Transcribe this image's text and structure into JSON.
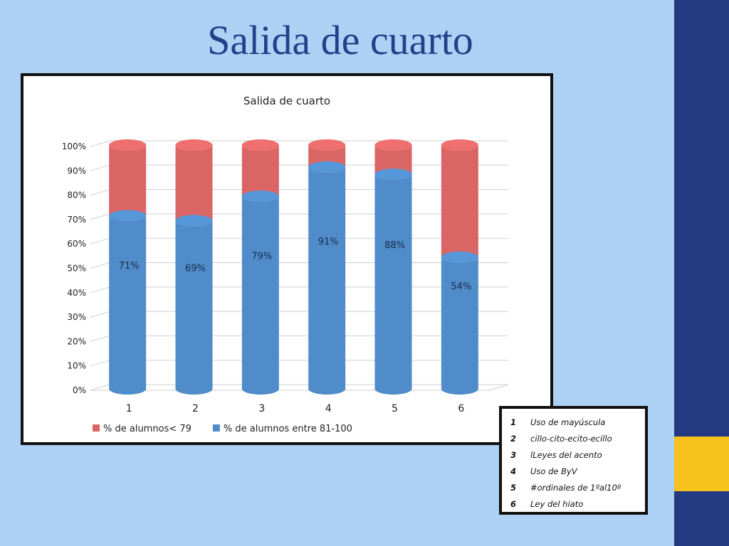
{
  "slide": {
    "title": "Salida de cuarto"
  },
  "chart_data": {
    "type": "bar",
    "stacked": true,
    "percent_stacked": true,
    "style": "3d-cylinder",
    "title": "Salida de cuarto",
    "categories": [
      "1",
      "2",
      "3",
      "4",
      "5",
      "6"
    ],
    "series": [
      {
        "name": "% de alumnos entre 81-100",
        "values": [
          71,
          69,
          79,
          91,
          88,
          54
        ],
        "color": "#4f8cc9",
        "labels": [
          "71%",
          "69%",
          "79%",
          "91%",
          "88%",
          "54%"
        ]
      },
      {
        "name": "% de alumnos< 79",
        "values": [
          29,
          31,
          21,
          9,
          12,
          46
        ],
        "color": "#d96565"
      }
    ],
    "y_ticks": [
      "0%",
      "10%",
      "20%",
      "30%",
      "40%",
      "50%",
      "60%",
      "70%",
      "80%",
      "90%",
      "100%"
    ],
    "ylim": [
      0,
      100
    ],
    "grid": true,
    "legend_position": "bottom",
    "legend_order": [
      "% de alumnos< 79",
      "% de alumnos entre 81-100"
    ]
  },
  "key_table": {
    "rows": [
      {
        "num": "1",
        "label": "Uso de mayúscula"
      },
      {
        "num": "2",
        "label": "cillo-cito-ecito-ecillo"
      },
      {
        "num": "3",
        "label": "lLeyes del acento"
      },
      {
        "num": "4",
        "label": "Uso de ByV"
      },
      {
        "num": "5",
        "label": "#ordinales de 1ºal10º"
      },
      {
        "num": "6",
        "label": "Ley del hiato"
      }
    ]
  }
}
